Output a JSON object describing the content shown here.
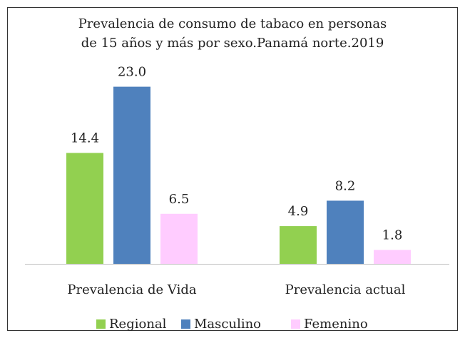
{
  "chart_data": {
    "type": "bar",
    "title": [
      "Prevalencia de consumo de tabaco en personas",
      "de 15 años y más por sexo.Panamá norte.2019"
    ],
    "categories": [
      "Prevalencia de  Vida",
      "Prevalencia actual"
    ],
    "series": [
      {
        "name": "Regional",
        "color": "#92d050",
        "values": [
          14.4,
          4.9
        ],
        "value_labels": [
          "14.4",
          "4.9"
        ]
      },
      {
        "name": "Masculino",
        "color": "#4f81bd",
        "values": [
          23.0,
          8.2
        ],
        "value_labels": [
          "23.0",
          "8.2"
        ]
      },
      {
        "name": "Femenino",
        "color": "#ffccff",
        "values": [
          6.5,
          1.8
        ],
        "value_labels": [
          "6.5",
          "1.8"
        ]
      }
    ],
    "legend": "bottom"
  }
}
